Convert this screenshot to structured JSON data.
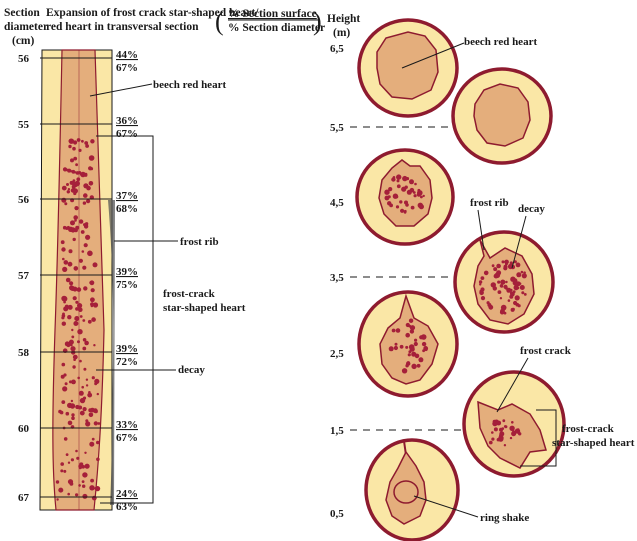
{
  "header": {
    "section_label_1": "Section",
    "section_label_2": "diameter",
    "section_label_3": "(cm)",
    "expansion_label_1": "Expansion of frost crack star-shaped heart/",
    "expansion_label_2": "red heart in transversal section",
    "ratio_top": "% Section surface",
    "ratio_bottom": "% Section diameter",
    "height_label_1": "Height",
    "height_label_2": "(m)"
  },
  "stem_sections": [
    {
      "diameter": "56",
      "surface": "44%",
      "diam_pct": "67%"
    },
    {
      "diameter": "55",
      "surface": "36%",
      "diam_pct": "67%"
    },
    {
      "diameter": "56",
      "surface": "37%",
      "diam_pct": "68%"
    },
    {
      "diameter": "57",
      "surface": "39%",
      "diam_pct": "75%"
    },
    {
      "diameter": "58",
      "surface": "39%",
      "diam_pct": "72%"
    },
    {
      "diameter": "60",
      "surface": "33%",
      "diam_pct": "67%"
    },
    {
      "diameter": "67",
      "surface": "24%",
      "diam_pct": "63%"
    }
  ],
  "stem_labels": {
    "beech_red_heart": "beech red heart",
    "frost_rib": "frost rib",
    "frost_crack_1": "frost-crack",
    "frost_crack_2": "star-shaped heart",
    "decay": "decay"
  },
  "heights": [
    "6,5",
    "5,5",
    "4,5",
    "3,5",
    "2,5",
    "1,5",
    "0,5"
  ],
  "cross_labels": {
    "beech_red_heart": "beech red heart",
    "frost_rib": "frost rib",
    "decay": "decay",
    "frost_crack": "frost crack",
    "frost_crack_1": "frost-crack",
    "frost_crack_2": "star-shaped heart",
    "ring_shake": "ring shake"
  },
  "colors": {
    "sapwood": "#FAE7A6",
    "heartwood": "#E4AE7C",
    "bark": "#8E1B2F",
    "decay": "#A5203A",
    "line": "#1a1a1a"
  }
}
